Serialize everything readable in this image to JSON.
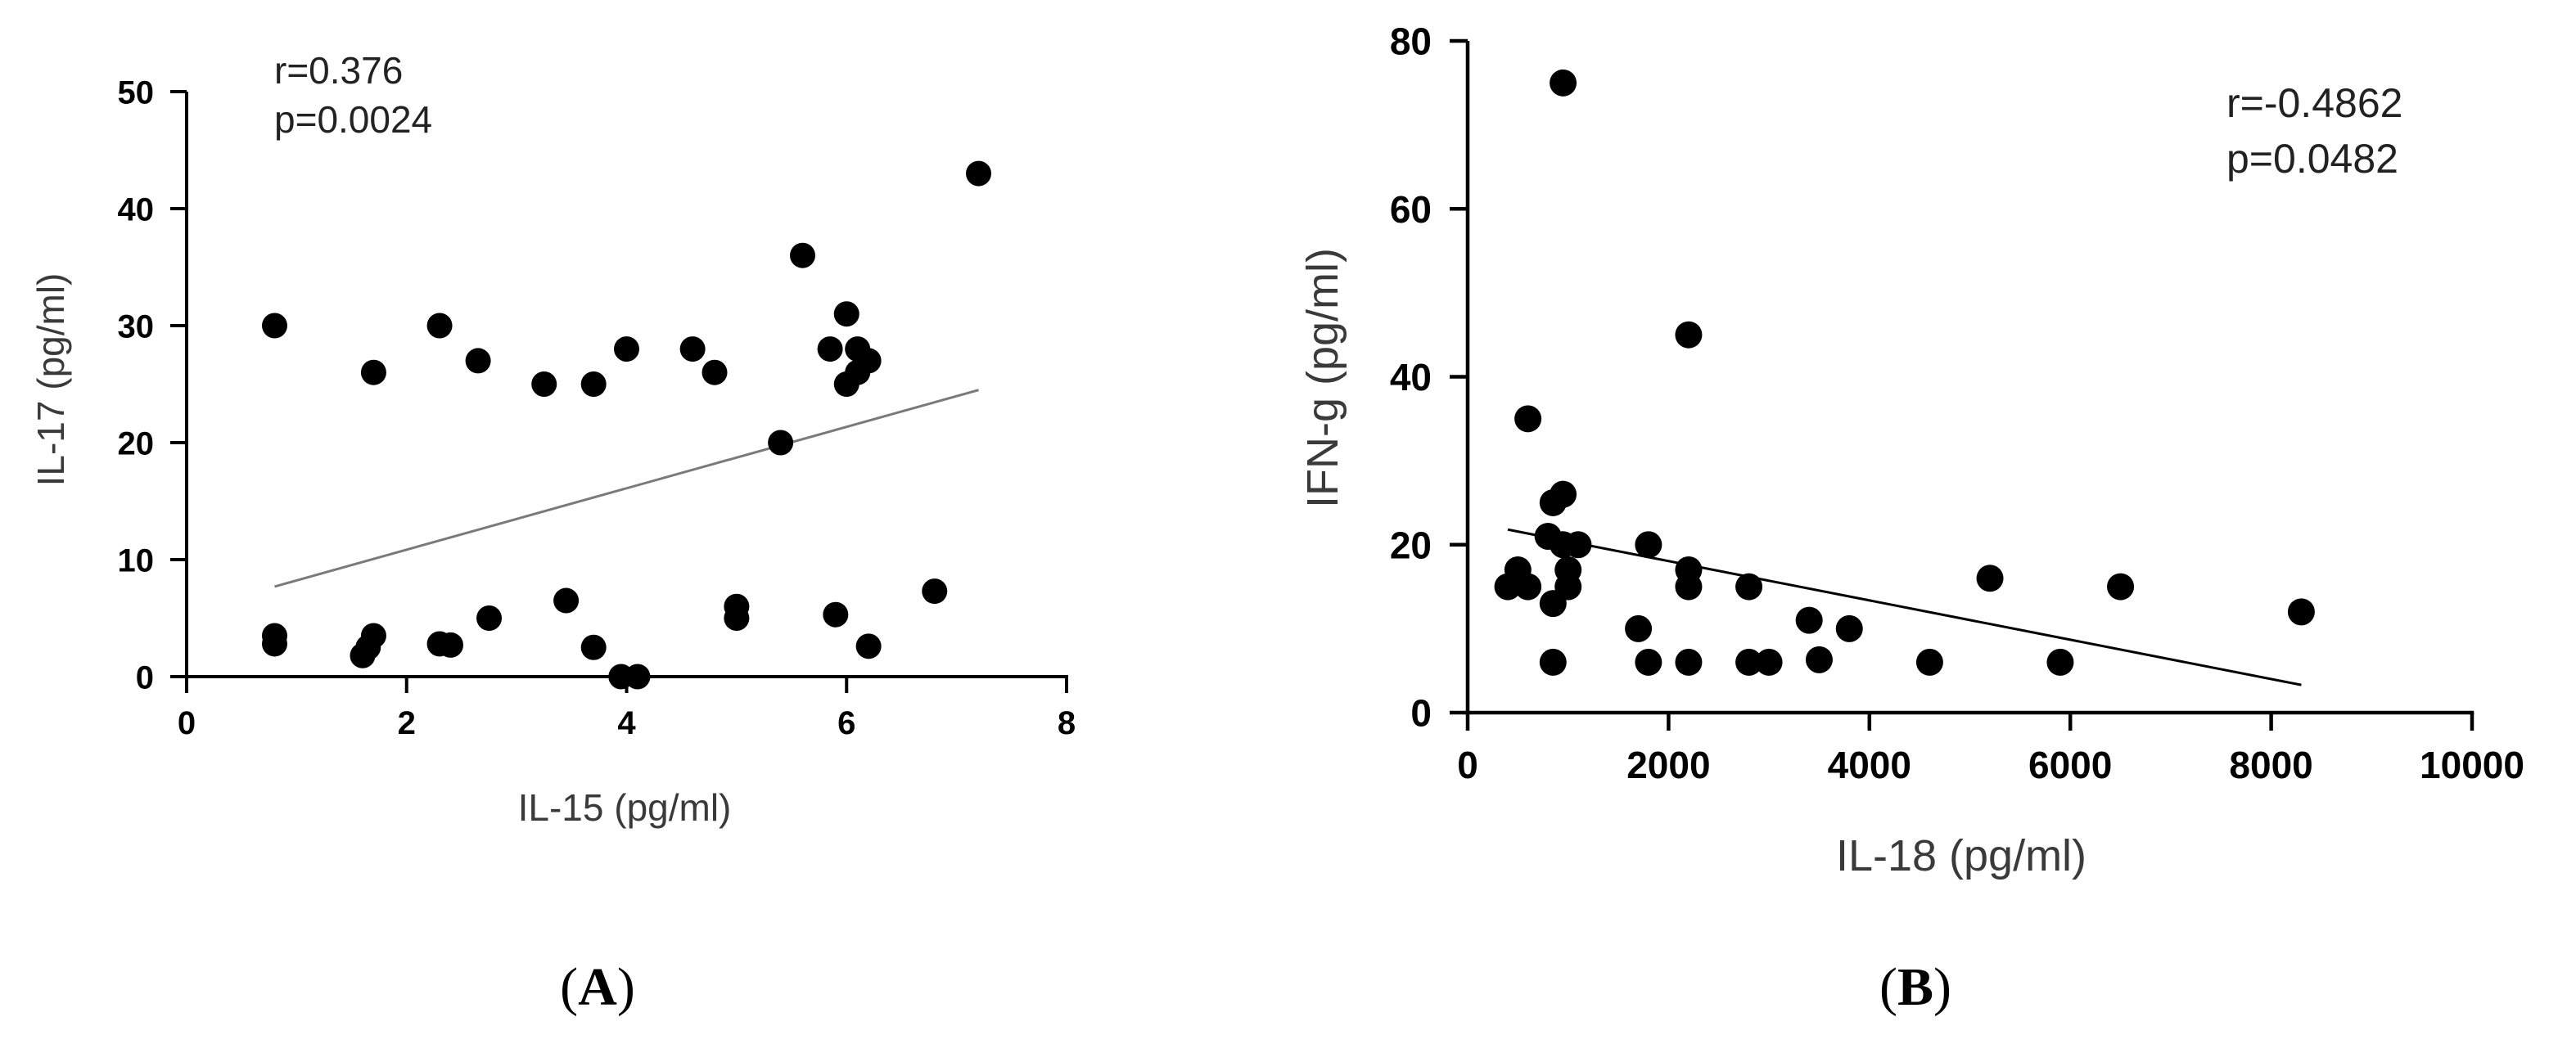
{
  "chart_data": [
    {
      "type": "scatter",
      "panel_label": "A",
      "xlabel": "IL-15 (pg/ml)",
      "ylabel": "IL-17 (pg/ml)",
      "xlim": [
        0,
        8
      ],
      "ylim": [
        0,
        50
      ],
      "xticks": [
        0,
        2,
        4,
        6,
        8
      ],
      "yticks": [
        0,
        10,
        20,
        30,
        40,
        50
      ],
      "grid": false,
      "annotations": [
        "r=0.376",
        "p=0.0024"
      ],
      "trendline": {
        "x": [
          0.8,
          7.2
        ],
        "y": [
          7.7,
          24.5
        ]
      },
      "points": [
        {
          "x": 0.8,
          "y": 30
        },
        {
          "x": 0.8,
          "y": 3.5
        },
        {
          "x": 0.8,
          "y": 2.8
        },
        {
          "x": 1.6,
          "y": 1.8
        },
        {
          "x": 1.65,
          "y": 2.5
        },
        {
          "x": 1.7,
          "y": 3.5
        },
        {
          "x": 1.7,
          "y": 26
        },
        {
          "x": 2.3,
          "y": 30
        },
        {
          "x": 2.3,
          "y": 2.8
        },
        {
          "x": 2.4,
          "y": 2.7
        },
        {
          "x": 2.65,
          "y": 27
        },
        {
          "x": 2.75,
          "y": 5
        },
        {
          "x": 3.25,
          "y": 25
        },
        {
          "x": 3.45,
          "y": 6.5
        },
        {
          "x": 3.7,
          "y": 25
        },
        {
          "x": 3.7,
          "y": 2.5
        },
        {
          "x": 3.95,
          "y": 0
        },
        {
          "x": 4.0,
          "y": 28
        },
        {
          "x": 4.1,
          "y": 0
        },
        {
          "x": 4.6,
          "y": 28
        },
        {
          "x": 4.8,
          "y": 26
        },
        {
          "x": 5.0,
          "y": 6
        },
        {
          "x": 5.0,
          "y": 5
        },
        {
          "x": 5.4,
          "y": 20
        },
        {
          "x": 5.6,
          "y": 36
        },
        {
          "x": 5.85,
          "y": 28
        },
        {
          "x": 5.9,
          "y": 5.3
        },
        {
          "x": 6.0,
          "y": 31
        },
        {
          "x": 6.0,
          "y": 25
        },
        {
          "x": 6.1,
          "y": 28
        },
        {
          "x": 6.1,
          "y": 26
        },
        {
          "x": 6.2,
          "y": 27
        },
        {
          "x": 6.2,
          "y": 2.6
        },
        {
          "x": 6.8,
          "y": 7.3
        },
        {
          "x": 7.2,
          "y": 43
        }
      ]
    },
    {
      "type": "scatter",
      "panel_label": "B",
      "xlabel": "IL-18 (pg/ml)",
      "ylabel": "IFN-g (pg/ml)",
      "xlim": [
        0,
        10000
      ],
      "ylim": [
        0,
        80
      ],
      "xticks": [
        0,
        2000,
        4000,
        6000,
        8000,
        10000
      ],
      "yticks": [
        0,
        20,
        40,
        60,
        80
      ],
      "grid": false,
      "annotations": [
        "r=-0.4862",
        "p=0.0482"
      ],
      "trendline": {
        "x": [
          400,
          8300
        ],
        "y": [
          21.8,
          3.3
        ]
      },
      "points": [
        {
          "x": 400,
          "y": 15
        },
        {
          "x": 500,
          "y": 17
        },
        {
          "x": 600,
          "y": 15
        },
        {
          "x": 600,
          "y": 35
        },
        {
          "x": 800,
          "y": 21
        },
        {
          "x": 850,
          "y": 25
        },
        {
          "x": 850,
          "y": 13
        },
        {
          "x": 850,
          "y": 6
        },
        {
          "x": 950,
          "y": 75
        },
        {
          "x": 950,
          "y": 26
        },
        {
          "x": 950,
          "y": 20
        },
        {
          "x": 1000,
          "y": 17
        },
        {
          "x": 1000,
          "y": 15
        },
        {
          "x": 1100,
          "y": 20
        },
        {
          "x": 1700,
          "y": 10
        },
        {
          "x": 1800,
          "y": 20
        },
        {
          "x": 1800,
          "y": 6
        },
        {
          "x": 2200,
          "y": 45
        },
        {
          "x": 2200,
          "y": 17
        },
        {
          "x": 2200,
          "y": 15
        },
        {
          "x": 2200,
          "y": 6
        },
        {
          "x": 2800,
          "y": 15
        },
        {
          "x": 2800,
          "y": 6
        },
        {
          "x": 3000,
          "y": 6
        },
        {
          "x": 3400,
          "y": 11
        },
        {
          "x": 3500,
          "y": 6.3
        },
        {
          "x": 3800,
          "y": 10
        },
        {
          "x": 4600,
          "y": 6
        },
        {
          "x": 5200,
          "y": 16
        },
        {
          "x": 5900,
          "y": 6
        },
        {
          "x": 6500,
          "y": 15
        },
        {
          "x": 8300,
          "y": 12
        }
      ]
    }
  ]
}
